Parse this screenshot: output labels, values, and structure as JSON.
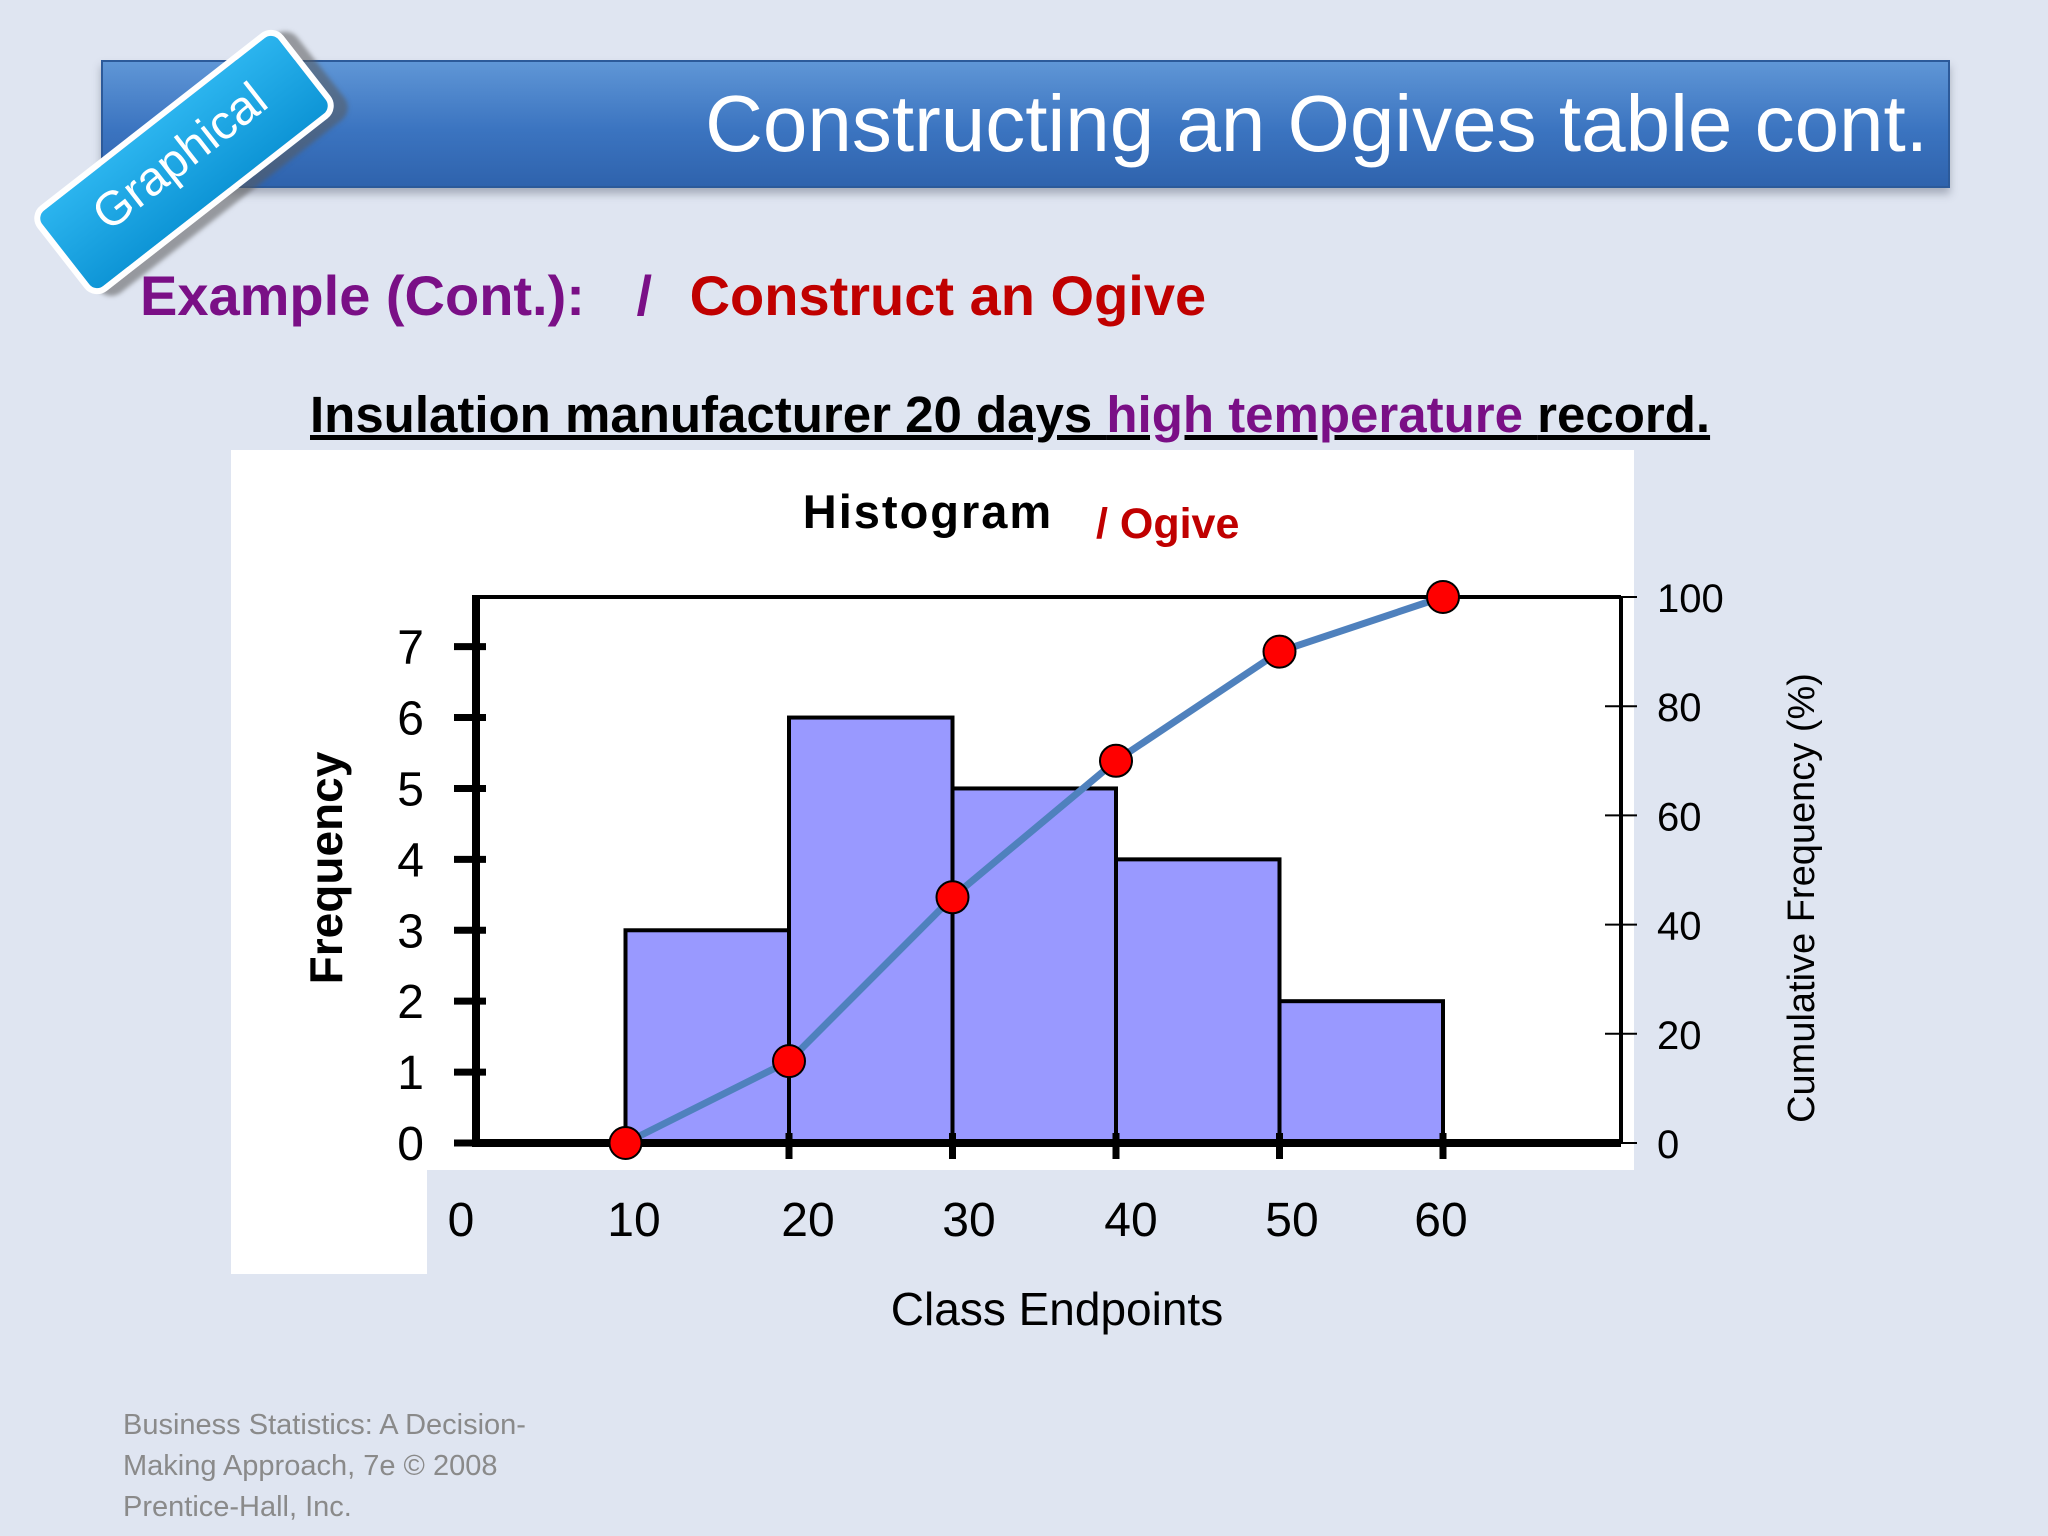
{
  "header": {
    "title": "Constructing an Ogives table cont.",
    "badge": "Graphical"
  },
  "example": {
    "label": "Example (Cont.):",
    "separator": "/",
    "task": "Construct an Ogive"
  },
  "subtitle": {
    "part1": "Insulation manufacturer 20 days ",
    "part2": "high temperature ",
    "part3": "record."
  },
  "chart_data": {
    "type": "bar",
    "title": "Histogram",
    "title_suffix": "/ Ogive",
    "xlabel": "Class Endpoints",
    "ylabel": "Frequency",
    "y2label": "Cumulative Frequency (%)",
    "x_ticks": [
      "0",
      "10",
      "20",
      "30",
      "40",
      "50",
      "60"
    ],
    "y_ticks": [
      "0",
      "1",
      "2",
      "3",
      "4",
      "5",
      "6",
      "7"
    ],
    "y2_ticks": [
      "0",
      "20",
      "40",
      "60",
      "80",
      "100"
    ],
    "ylim": [
      0,
      7
    ],
    "y2lim": [
      0,
      100
    ],
    "grid": false,
    "bars": [
      {
        "x_start": 10,
        "x_end": 20,
        "value": 3
      },
      {
        "x_start": 20,
        "x_end": 30,
        "value": 6
      },
      {
        "x_start": 30,
        "x_end": 40,
        "value": 5
      },
      {
        "x_start": 40,
        "x_end": 50,
        "value": 4
      },
      {
        "x_start": 50,
        "x_end": 60,
        "value": 2
      }
    ],
    "series": [
      {
        "type": "line",
        "axis": "y2",
        "x": [
          10,
          20,
          30,
          40,
          50,
          60
        ],
        "values": [
          0,
          15,
          45,
          70,
          90,
          100
        ]
      }
    ],
    "colors": {
      "bars": "#9999ff",
      "line": "#4f81bd",
      "markers": "#ff0000",
      "title_suffix": "#c00000"
    }
  },
  "footer": {
    "line1": "Business Statistics: A Decision-",
    "line2": "Making Approach, 7e © 2008",
    "line3": "Prentice-Hall, Inc."
  }
}
